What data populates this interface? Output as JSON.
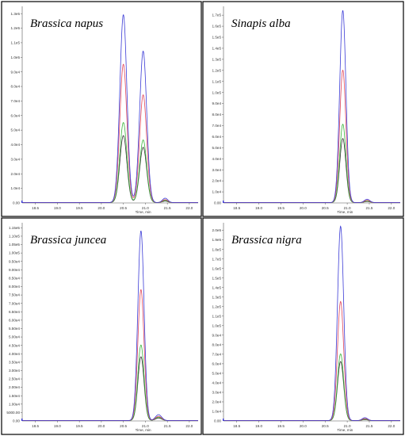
{
  "colors": {
    "blue": "#3b3bd6",
    "red": "#e0465a",
    "green": "#3cb53c",
    "black": "#333333",
    "border": "#000000",
    "axis": "#555555"
  },
  "chart_data": [
    {
      "type": "line",
      "title": "Brassica napus",
      "xlabel": "Time, min",
      "xticks": [
        "18.5",
        "19.0",
        "19.5",
        "20.0",
        "20.5",
        "21.0",
        "21.5",
        "22.0"
      ],
      "yticks": [
        "1.0e4",
        "2.0e4",
        "3.0e4",
        "4.0e4",
        "5.0e4",
        "6.0e4",
        "7.0e4",
        "8.0e4",
        "9.0e4",
        "1.0e5",
        "1.1e5",
        "1.2e5",
        "1.3e5"
      ],
      "xlim": [
        18.2,
        22.2
      ],
      "ylim": [
        0,
        135000
      ],
      "peaks": [
        {
          "t": 20.5,
          "width": 0.08,
          "heights": {
            "blue": 129000,
            "red": 95000,
            "green": 55000,
            "black": 46000
          }
        },
        {
          "t": 20.95,
          "width": 0.08,
          "heights": {
            "blue": 104000,
            "red": 74000,
            "green": 43000,
            "black": 38000
          }
        },
        {
          "t": 21.45,
          "width": 0.06,
          "heights": {
            "blue": 3000,
            "red": 2000,
            "green": 1500,
            "black": 1000
          }
        }
      ]
    },
    {
      "type": "line",
      "title": "Sinapis alba",
      "xlabel": "Time, min",
      "xticks": [
        "18.5",
        "19.0",
        "19.5",
        "20.0",
        "20.5",
        "21.0",
        "21.5",
        "22.0"
      ],
      "yticks": [
        "1.0e4",
        "2.0e4",
        "3.0e4",
        "4.0e4",
        "5.0e4",
        "6.0e4",
        "7.0e4",
        "8.0e4",
        "9.0e4",
        "1.0e5",
        "1.1e5",
        "1.2e5",
        "1.3e5",
        "1.4e5",
        "1.5e5",
        "1.6e5",
        "1.7e5"
      ],
      "xlim": [
        18.2,
        22.2
      ],
      "ylim": [
        0,
        178000
      ],
      "peaks": [
        {
          "t": 20.9,
          "width": 0.07,
          "heights": {
            "blue": 174000,
            "red": 120000,
            "green": 71000,
            "black": 58000
          }
        },
        {
          "t": 21.45,
          "width": 0.06,
          "heights": {
            "blue": 3000,
            "red": 2000,
            "green": 1500,
            "black": 1000
          }
        }
      ]
    },
    {
      "type": "line",
      "title": "Brassica juncea",
      "xlabel": "Time, min",
      "xticks": [
        "18.5",
        "19.0",
        "19.5",
        "20.0",
        "20.5",
        "21.0",
        "21.5",
        "22.0"
      ],
      "yticks": [
        "5000.00",
        "1.00e4",
        "1.50e4",
        "2.00e4",
        "2.50e4",
        "3.00e4",
        "3.50e4",
        "4.00e4",
        "4.50e4",
        "5.00e4",
        "5.50e4",
        "6.00e4",
        "6.50e4",
        "7.00e4",
        "7.50e4",
        "8.00e4",
        "8.50e4",
        "9.00e4",
        "9.50e4",
        "1.00e5",
        "1.05e5",
        "1.10e5",
        "1.15e5"
      ],
      "xlim": [
        18.2,
        22.2
      ],
      "ylim": [
        0,
        118000
      ],
      "peaks": [
        {
          "t": 20.9,
          "width": 0.07,
          "heights": {
            "blue": 113000,
            "red": 78000,
            "green": 45000,
            "black": 38000
          }
        },
        {
          "t": 21.3,
          "width": 0.07,
          "heights": {
            "blue": 3500,
            "red": 2500,
            "green": 2000,
            "black": 1500
          }
        }
      ]
    },
    {
      "type": "line",
      "title": "Brassica nigra",
      "xlabel": "Time, min",
      "xticks": [
        "18.5",
        "19.0",
        "19.5",
        "20.0",
        "20.5",
        "21.0",
        "21.5",
        "22.0"
      ],
      "yticks": [
        "1.0e4",
        "2.0e4",
        "3.0e4",
        "4.0e4",
        "5.0e4",
        "6.0e4",
        "7.0e4",
        "8.0e4",
        "9.0e4",
        "1.0e5",
        "1.1e5",
        "1.2e5",
        "1.3e5",
        "1.4e5",
        "1.5e5",
        "1.6e5",
        "1.7e5",
        "1.8e5",
        "1.9e5",
        "2.0e5"
      ],
      "xlim": [
        18.2,
        22.2
      ],
      "ylim": [
        0,
        208000
      ],
      "peaks": [
        {
          "t": 20.85,
          "width": 0.07,
          "heights": {
            "blue": 204000,
            "red": 125000,
            "green": 70000,
            "black": 62000
          }
        },
        {
          "t": 21.4,
          "width": 0.06,
          "heights": {
            "blue": 3000,
            "red": 2000,
            "green": 1500,
            "black": 1000
          }
        }
      ]
    }
  ]
}
